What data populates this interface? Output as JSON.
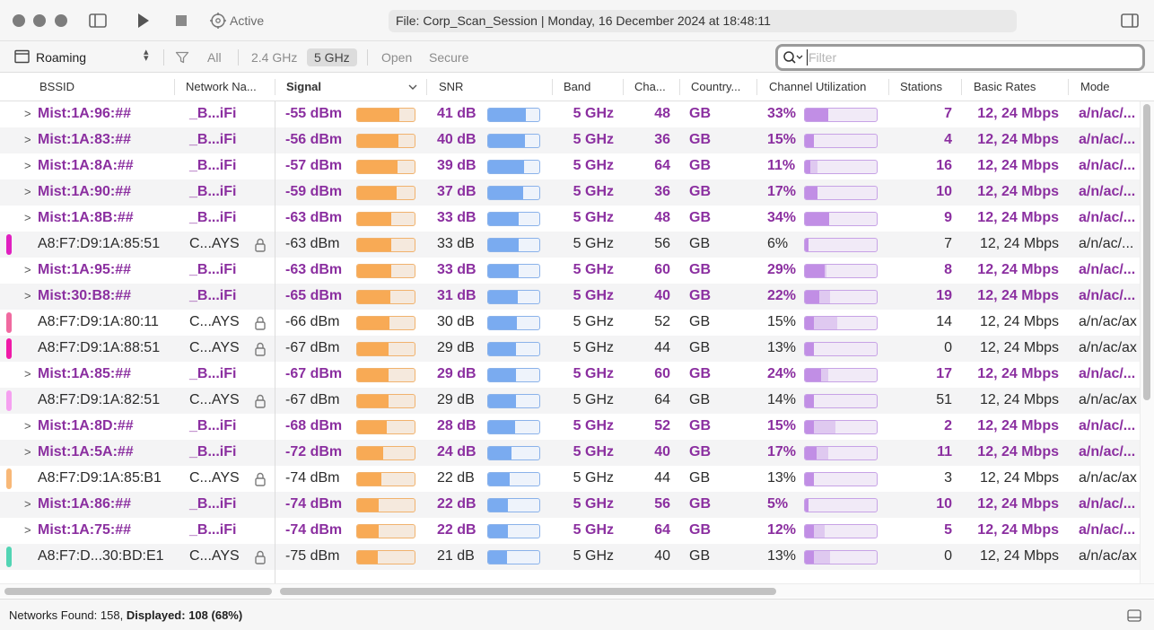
{
  "titlebar": {
    "status_label": "Active",
    "title": "File: Corp_Scan_Session | Monday, 16 December 2024 at 18:48:11"
  },
  "filterbar": {
    "mode": "Roaming",
    "band_all": "All",
    "band_24": "2.4 GHz",
    "band_5": "5 GHz",
    "security_open": "Open",
    "security_secure": "Secure",
    "search_placeholder": "Filter",
    "selected_band": "5 GHz"
  },
  "columns": {
    "bssid": "BSSID",
    "network": "Network Na...",
    "signal": "Signal",
    "snr": "SNR",
    "band": "Band",
    "channel": "Cha...",
    "country": "Country...",
    "utilization": "Channel Utilization",
    "stations": "Stations",
    "rates": "Basic Rates",
    "mode": "Mode"
  },
  "colors": {
    "bold_row_text": "#8b2fa0",
    "signal_bar": "#f8aa55",
    "snr_bar": "#7aabf0",
    "utilization_bar": "#c18ee5"
  },
  "rows": [
    {
      "bssid": "Mist:1A:96:##",
      "network": "_B...iFi",
      "signal": "-55 dBm",
      "snr": "41 dB",
      "band": "5 GHz",
      "channel": "48",
      "country": "GB",
      "utilization": "33%",
      "stations": "7",
      "rates": "12, 24 Mbps",
      "mode": "a/n/ac/...",
      "group": true,
      "secure": false,
      "tag": null,
      "signal_level": 0.74,
      "snr_level": 0.74,
      "util_level": 0.33,
      "util_ghost": 0.33
    },
    {
      "bssid": "Mist:1A:83:##",
      "network": "_B...iFi",
      "signal": "-56 dBm",
      "snr": "40 dB",
      "band": "5 GHz",
      "channel": "36",
      "country": "GB",
      "utilization": "15%",
      "stations": "4",
      "rates": "12, 24 Mbps",
      "mode": "a/n/ac/...",
      "group": true,
      "secure": false,
      "tag": null,
      "signal_level": 0.72,
      "snr_level": 0.72,
      "util_level": 0.13,
      "util_ghost": 0.13
    },
    {
      "bssid": "Mist:1A:8A:##",
      "network": "_B...iFi",
      "signal": "-57 dBm",
      "snr": "39 dB",
      "band": "5 GHz",
      "channel": "64",
      "country": "GB",
      "utilization": "11%",
      "stations": "16",
      "rates": "12, 24 Mbps",
      "mode": "a/n/ac/...",
      "group": true,
      "secure": false,
      "tag": null,
      "signal_level": 0.7,
      "snr_level": 0.7,
      "util_level": 0.08,
      "util_ghost": 0.18
    },
    {
      "bssid": "Mist:1A:90:##",
      "network": "_B...iFi",
      "signal": "-59 dBm",
      "snr": "37 dB",
      "band": "5 GHz",
      "channel": "36",
      "country": "GB",
      "utilization": "17%",
      "stations": "10",
      "rates": "12, 24 Mbps",
      "mode": "a/n/ac/...",
      "group": true,
      "secure": false,
      "tag": null,
      "signal_level": 0.68,
      "snr_level": 0.68,
      "util_level": 0.17,
      "util_ghost": 0.17
    },
    {
      "bssid": "Mist:1A:8B:##",
      "network": "_B...iFi",
      "signal": "-63 dBm",
      "snr": "33 dB",
      "band": "5 GHz",
      "channel": "48",
      "country": "GB",
      "utilization": "34%",
      "stations": "9",
      "rates": "12, 24 Mbps",
      "mode": "a/n/ac/...",
      "group": true,
      "secure": false,
      "tag": null,
      "signal_level": 0.6,
      "snr_level": 0.6,
      "util_level": 0.34,
      "util_ghost": 0.34
    },
    {
      "bssid": "A8:F7:D9:1A:85:51",
      "network": "C...AYS",
      "signal": "-63 dBm",
      "snr": "33 dB",
      "band": "5 GHz",
      "channel": "56",
      "country": "GB",
      "utilization": "6%",
      "stations": "7",
      "rates": "12, 24 Mbps",
      "mode": "a/n/ac/...",
      "group": false,
      "secure": true,
      "tag": "#e020c0",
      "signal_level": 0.6,
      "snr_level": 0.6,
      "util_level": 0.05,
      "util_ghost": 0.05
    },
    {
      "bssid": "Mist:1A:95:##",
      "network": "_B...iFi",
      "signal": "-63 dBm",
      "snr": "33 dB",
      "band": "5 GHz",
      "channel": "60",
      "country": "GB",
      "utilization": "29%",
      "stations": "8",
      "rates": "12, 24 Mbps",
      "mode": "a/n/ac/...",
      "group": true,
      "secure": false,
      "tag": null,
      "signal_level": 0.6,
      "snr_level": 0.6,
      "util_level": 0.27,
      "util_ghost": 0.3
    },
    {
      "bssid": "Mist:30:B8:##",
      "network": "_B...iFi",
      "signal": "-65 dBm",
      "snr": "31 dB",
      "band": "5 GHz",
      "channel": "40",
      "country": "GB",
      "utilization": "22%",
      "stations": "19",
      "rates": "12, 24 Mbps",
      "mode": "a/n/ac/...",
      "group": true,
      "secure": false,
      "tag": null,
      "signal_level": 0.58,
      "snr_level": 0.58,
      "util_level": 0.2,
      "util_ghost": 0.35
    },
    {
      "bssid": "A8:F7:D9:1A:80:11",
      "network": "C...AYS",
      "signal": "-66 dBm",
      "snr": "30 dB",
      "band": "5 GHz",
      "channel": "52",
      "country": "GB",
      "utilization": "15%",
      "stations": "14",
      "rates": "12, 24 Mbps",
      "mode": "a/n/ac/ax",
      "group": false,
      "secure": true,
      "tag": "#f06aa0",
      "signal_level": 0.56,
      "snr_level": 0.56,
      "util_level": 0.12,
      "util_ghost": 0.45
    },
    {
      "bssid": "A8:F7:D9:1A:88:51",
      "network": "C...AYS",
      "signal": "-67 dBm",
      "snr": "29 dB",
      "band": "5 GHz",
      "channel": "44",
      "country": "GB",
      "utilization": "13%",
      "stations": "0",
      "rates": "12, 24 Mbps",
      "mode": "a/n/ac/ax",
      "group": false,
      "secure": true,
      "tag": "#f01aa8",
      "signal_level": 0.55,
      "snr_level": 0.55,
      "util_level": 0.12,
      "util_ghost": 0.12
    },
    {
      "bssid": "Mist:1A:85:##",
      "network": "_B...iFi",
      "signal": "-67 dBm",
      "snr": "29 dB",
      "band": "5 GHz",
      "channel": "60",
      "country": "GB",
      "utilization": "24%",
      "stations": "17",
      "rates": "12, 24 Mbps",
      "mode": "a/n/ac/...",
      "group": true,
      "secure": false,
      "tag": null,
      "signal_level": 0.55,
      "snr_level": 0.55,
      "util_level": 0.22,
      "util_ghost": 0.33
    },
    {
      "bssid": "A8:F7:D9:1A:82:51",
      "network": "C...AYS",
      "signal": "-67 dBm",
      "snr": "29 dB",
      "band": "5 GHz",
      "channel": "64",
      "country": "GB",
      "utilization": "14%",
      "stations": "51",
      "rates": "12, 24 Mbps",
      "mode": "a/n/ac/ax",
      "group": false,
      "secure": true,
      "tag": "#f5a0f0",
      "signal_level": 0.55,
      "snr_level": 0.55,
      "util_level": 0.12,
      "util_ghost": 0.12
    },
    {
      "bssid": "Mist:1A:8D:##",
      "network": "_B...iFi",
      "signal": "-68 dBm",
      "snr": "28 dB",
      "band": "5 GHz",
      "channel": "52",
      "country": "GB",
      "utilization": "15%",
      "stations": "2",
      "rates": "12, 24 Mbps",
      "mode": "a/n/ac/...",
      "group": true,
      "secure": false,
      "tag": null,
      "signal_level": 0.52,
      "snr_level": 0.52,
      "util_level": 0.12,
      "util_ghost": 0.42
    },
    {
      "bssid": "Mist:1A:5A:##",
      "network": "_B...iFi",
      "signal": "-72 dBm",
      "snr": "24 dB",
      "band": "5 GHz",
      "channel": "40",
      "country": "GB",
      "utilization": "17%",
      "stations": "11",
      "rates": "12, 24 Mbps",
      "mode": "a/n/ac/...",
      "group": true,
      "secure": false,
      "tag": null,
      "signal_level": 0.46,
      "snr_level": 0.46,
      "util_level": 0.16,
      "util_ghost": 0.33
    },
    {
      "bssid": "A8:F7:D9:1A:85:B1",
      "network": "C...AYS",
      "signal": "-74 dBm",
      "snr": "22 dB",
      "band": "5 GHz",
      "channel": "44",
      "country": "GB",
      "utilization": "13%",
      "stations": "3",
      "rates": "12, 24 Mbps",
      "mode": "a/n/ac/ax",
      "group": false,
      "secure": true,
      "tag": "#f8b878",
      "signal_level": 0.42,
      "snr_level": 0.42,
      "util_level": 0.12,
      "util_ghost": 0.12
    },
    {
      "bssid": "Mist:1A:86:##",
      "network": "_B...iFi",
      "signal": "-74 dBm",
      "snr": "22 dB",
      "band": "5 GHz",
      "channel": "56",
      "country": "GB",
      "utilization": "5%",
      "stations": "10",
      "rates": "12, 24 Mbps",
      "mode": "a/n/ac/...",
      "group": true,
      "secure": false,
      "tag": null,
      "signal_level": 0.38,
      "snr_level": 0.38,
      "util_level": 0.05,
      "util_ghost": 0.05
    },
    {
      "bssid": "Mist:1A:75:##",
      "network": "_B...iFi",
      "signal": "-74 dBm",
      "snr": "22 dB",
      "band": "5 GHz",
      "channel": "64",
      "country": "GB",
      "utilization": "12%",
      "stations": "5",
      "rates": "12, 24 Mbps",
      "mode": "a/n/ac/...",
      "group": true,
      "secure": false,
      "tag": null,
      "signal_level": 0.38,
      "snr_level": 0.38,
      "util_level": 0.12,
      "util_ghost": 0.28
    },
    {
      "bssid": "A8:F7:D...30:BD:E1",
      "network": "C...AYS",
      "signal": "-75 dBm",
      "snr": "21 dB",
      "band": "5 GHz",
      "channel": "40",
      "country": "GB",
      "utilization": "13%",
      "stations": "0",
      "rates": "12, 24 Mbps",
      "mode": "a/n/ac/ax",
      "group": false,
      "secure": true,
      "tag": "#52d4b4",
      "signal_level": 0.36,
      "snr_level": 0.36,
      "util_level": 0.12,
      "util_ghost": 0.35
    }
  ],
  "status": {
    "found_label": "Networks Found:",
    "found_value": "158,",
    "displayed_label": "Displayed:",
    "displayed_value": "108 (68%)"
  }
}
